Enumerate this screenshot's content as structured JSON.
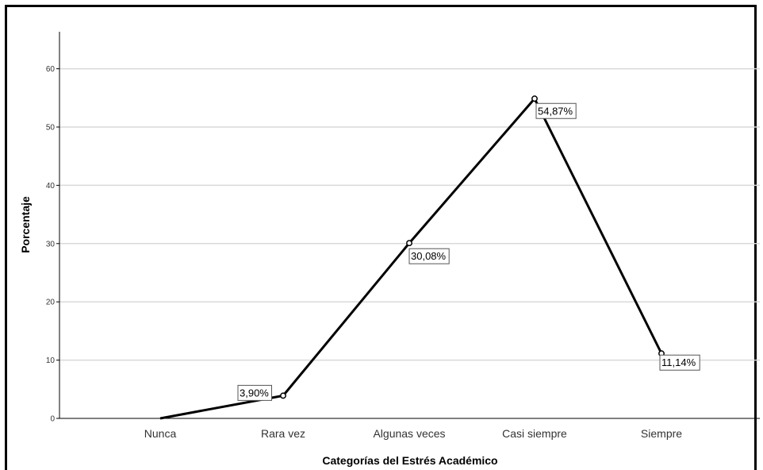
{
  "chart_data": {
    "type": "line",
    "categories": [
      "Nunca",
      "Rara vez",
      "Algunas veces",
      "Casi siempre",
      "Siempre"
    ],
    "values": [
      0,
      3.9,
      30.08,
      54.87,
      11.14
    ],
    "data_labels": [
      "",
      "3,90%",
      "30,08%",
      "54,87%",
      "11,14%"
    ],
    "y_ticks": [
      "0",
      "10",
      "20",
      "30",
      "40",
      "50",
      "60"
    ],
    "ylim": [
      0,
      66
    ],
    "xlabel": "Categorías del Estrés Académico",
    "ylabel": "Porcentaje",
    "grid": true,
    "line_color": "#000000",
    "grid_color": "#d9d9d9"
  }
}
